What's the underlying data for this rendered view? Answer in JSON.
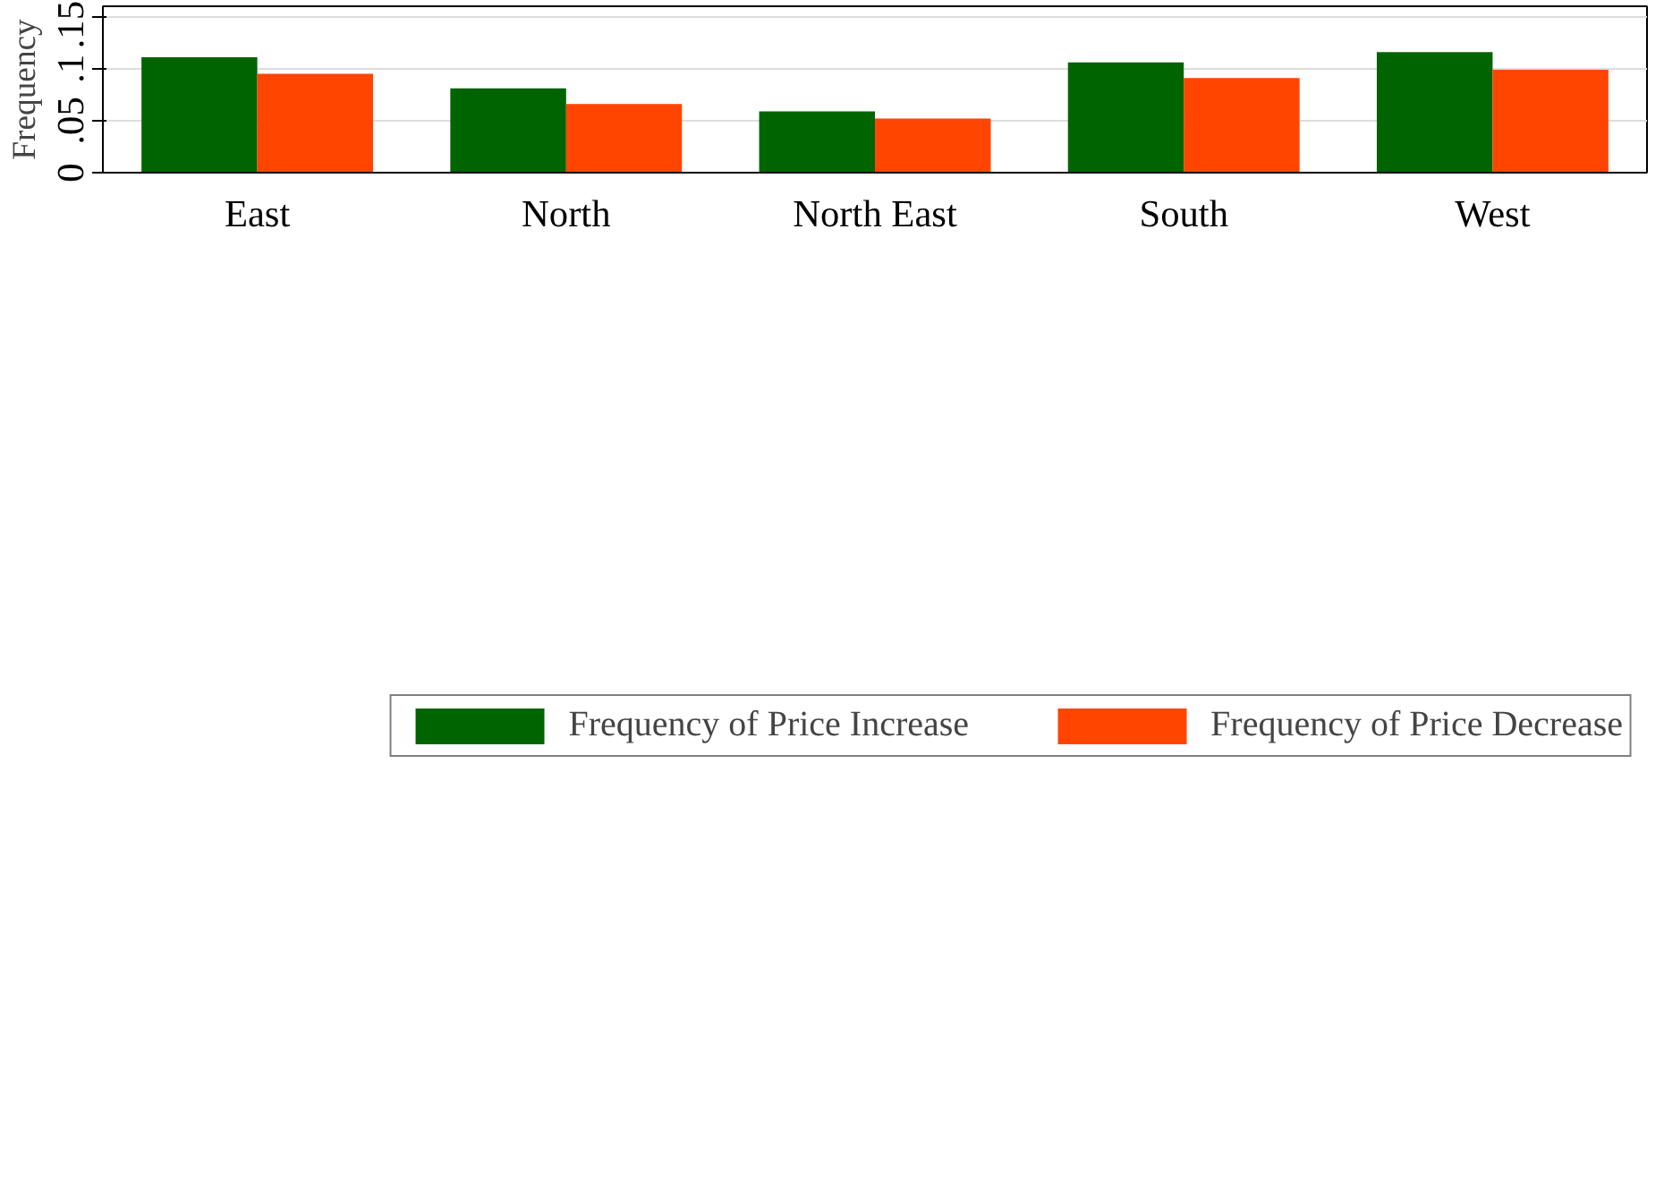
{
  "chart_data": {
    "type": "bar",
    "ylabel": "Frequency",
    "categories": [
      "East",
      "North",
      "North East",
      "South",
      "West"
    ],
    "series": [
      {
        "name": "Frequency of Price Increase",
        "color": "#006400",
        "values": [
          0.111,
          0.081,
          0.059,
          0.106,
          0.116
        ]
      },
      {
        "name": "Frequency of Price Decrease",
        "color": "#ff4500",
        "values": [
          0.095,
          0.066,
          0.052,
          0.091,
          0.099
        ]
      }
    ],
    "ylim": [
      0,
      0.16
    ],
    "yticks": [
      {
        "value": 0,
        "label": "0"
      },
      {
        "value": 0.05,
        "label": ".05"
      },
      {
        "value": 0.1,
        "label": ".1"
      },
      {
        "value": 0.15,
        "label": ".15"
      }
    ],
    "grid": "y",
    "legend": "bottom"
  }
}
